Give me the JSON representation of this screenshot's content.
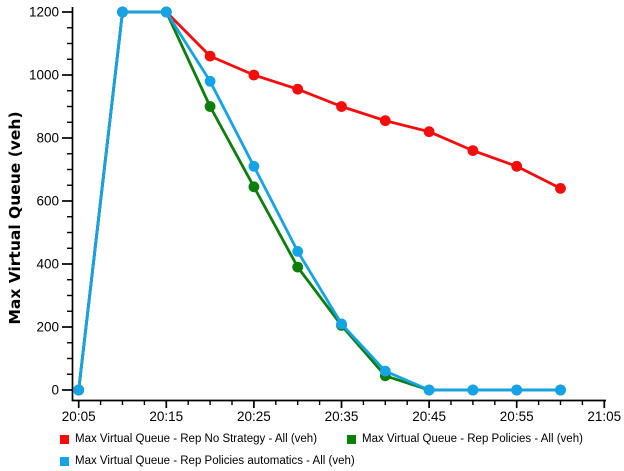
{
  "chart_data": {
    "type": "line",
    "title": "",
    "xlabel": "",
    "ylabel": "Max Virtual Queue (veh)",
    "x": [
      "20:05",
      "20:10",
      "20:15",
      "20:20",
      "20:25",
      "20:30",
      "20:35",
      "20:40",
      "20:45",
      "20:50",
      "20:55",
      "21:00"
    ],
    "x_axis_tick_labels": [
      "20:05",
      "20:15",
      "20:25",
      "20:35",
      "20:45",
      "20:55",
      "21:05"
    ],
    "x_minor_ticks_between_majors": 3,
    "ylim": [
      0,
      1200
    ],
    "y_major_ticks": [
      0,
      200,
      400,
      600,
      800,
      1000,
      1200
    ],
    "y_minor_step": 50,
    "grid": "off",
    "legend_position": "bottom",
    "background_color": "#ffffff",
    "axis_color": "#000000",
    "text_color": "#000000",
    "series": [
      {
        "name": "Max Virtual Queue - Rep No Strategy - All (veh)",
        "color": "#f50c0c",
        "marker": "circle",
        "values": [
          0,
          1200,
          1200,
          1060,
          1000,
          955,
          900,
          855,
          820,
          760,
          710,
          640
        ]
      },
      {
        "name": "Max Virtual Queue - Rep Policies - All (veh)",
        "color": "#0c7e0c",
        "marker": "circle",
        "values": [
          0,
          1200,
          1200,
          900,
          645,
          390,
          205,
          45,
          0,
          0,
          0,
          0
        ]
      },
      {
        "name": "Max Virtual Queue - Rep Policies automatics - All (veh)",
        "color": "#14a3e6",
        "marker": "circle",
        "values": [
          0,
          1200,
          1200,
          980,
          710,
          440,
          210,
          60,
          0,
          0,
          0,
          0
        ]
      }
    ]
  }
}
